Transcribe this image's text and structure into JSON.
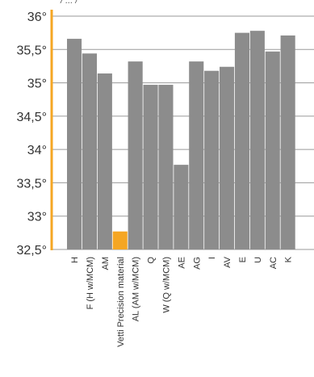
{
  "chart_data": {
    "type": "bar",
    "title": "",
    "xlabel": "",
    "ylabel": "",
    "ylim": [
      32.5,
      36
    ],
    "yticks": [
      "36°",
      "35,5°",
      "35°",
      "34,5°",
      "34°",
      "33,5°",
      "33°",
      "32,5°"
    ],
    "grid": "horizontal",
    "bar_color": "#8c8c8c",
    "highlight_color": "#f5a623",
    "axis_color": "#f5a623",
    "top_text": "/ ... /",
    "categories": [
      "H",
      "F (H w/MCM)",
      "AM",
      "Vetti Precision material",
      "AL (AM w/MCM)",
      "Q",
      "W (Q w/MCM)",
      "AE",
      "AG",
      "I",
      "AV",
      "E",
      "U",
      "AC",
      "K"
    ],
    "values": [
      35.66,
      35.44,
      35.14,
      32.77,
      35.32,
      34.97,
      34.97,
      33.77,
      35.32,
      35.18,
      35.24,
      35.75,
      35.78,
      35.47,
      35.71
    ],
    "highlight_index": 3
  }
}
